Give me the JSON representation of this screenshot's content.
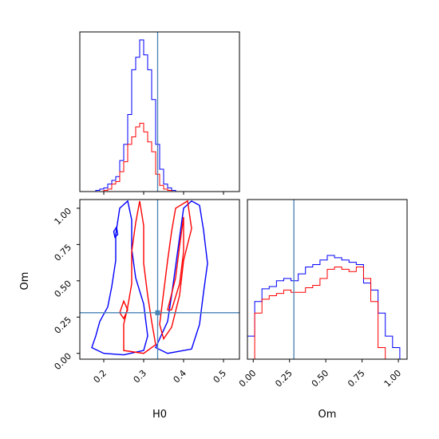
{
  "chart_data": {
    "type": "corner",
    "params": [
      "H0",
      "Om"
    ],
    "truth": {
      "H0": 0.335,
      "Om": 0.28
    },
    "truth_color": "#4682b4",
    "series_colors": {
      "a": "#0000ff",
      "b": "#ff0000"
    },
    "xlabel_h0": "H0",
    "xlabel_om": "Om",
    "ylabel_om": "Om",
    "h0_ticks": [
      "0.2",
      "0.3",
      "0.4",
      "0.5"
    ],
    "om_ticks": [
      "0.00",
      "0.25",
      "0.50",
      "0.75",
      "1.00"
    ],
    "h0_range": [
      0.14,
      0.54
    ],
    "om_range": [
      -0.04,
      1.06
    ],
    "hist_h0": {
      "bin_edges_start": 0.14,
      "bin_width": 0.01,
      "series": [
        {
          "color": "#0000ff",
          "counts": [
            0,
            0,
            0,
            0,
            1,
            2,
            3,
            6,
            9,
            12,
            25,
            38,
            62,
            98,
            108,
            122,
            110,
            98,
            74,
            38,
            18,
            6,
            3,
            1,
            0,
            0,
            0,
            0,
            0,
            0,
            0,
            0,
            0,
            0,
            0,
            0,
            0,
            0,
            0,
            0
          ]
        },
        {
          "color": "#ff0000",
          "counts": [
            0,
            0,
            0,
            0,
            0,
            0,
            1,
            2,
            6,
            8,
            16,
            24,
            38,
            44,
            52,
            55,
            48,
            40,
            32,
            14,
            5,
            2,
            1,
            0,
            0,
            0,
            0,
            0,
            0,
            0,
            0,
            0,
            0,
            0,
            0,
            0,
            0,
            0,
            0,
            0
          ]
        }
      ]
    },
    "hist_om": {
      "bin_edges_start": -0.04,
      "bin_width": 0.05,
      "series": [
        {
          "color": "#0000ff",
          "counts": [
            20,
            50,
            61,
            63,
            68,
            70,
            68,
            74,
            80,
            82,
            86,
            90,
            88,
            86,
            84,
            82,
            66,
            60,
            40,
            20,
            10,
            0
          ]
        },
        {
          "color": "#ff0000",
          "counts": [
            0,
            40,
            52,
            55,
            57,
            60,
            58,
            58,
            62,
            64,
            70,
            78,
            80,
            78,
            76,
            80,
            70,
            50,
            10,
            0,
            0,
            0
          ]
        }
      ]
    },
    "contours": {
      "blue": [
        [
          [
            0.17,
            0.04
          ],
          [
            0.18,
            0.12
          ],
          [
            0.19,
            0.22
          ],
          [
            0.21,
            0.32
          ],
          [
            0.22,
            0.46
          ],
          [
            0.23,
            0.64
          ],
          [
            0.23,
            0.82
          ],
          [
            0.24,
            1.0
          ],
          [
            0.26,
            1.05
          ],
          [
            0.27,
            0.92
          ],
          [
            0.27,
            0.72
          ],
          [
            0.28,
            0.52
          ],
          [
            0.3,
            0.34
          ],
          [
            0.31,
            0.12
          ],
          [
            0.3,
            0.02
          ],
          [
            0.25,
            -0.01
          ],
          [
            0.2,
            0.0
          ],
          [
            0.17,
            0.04
          ]
        ],
        [
          [
            0.33,
            0.04
          ],
          [
            0.36,
            0.22
          ],
          [
            0.37,
            0.4
          ],
          [
            0.38,
            0.6
          ],
          [
            0.39,
            0.8
          ],
          [
            0.4,
            1.0
          ],
          [
            0.42,
            1.05
          ],
          [
            0.44,
            1.02
          ],
          [
            0.45,
            0.85
          ],
          [
            0.46,
            0.62
          ],
          [
            0.45,
            0.42
          ],
          [
            0.44,
            0.2
          ],
          [
            0.42,
            0.03
          ],
          [
            0.36,
            0.0
          ],
          [
            0.33,
            0.04
          ]
        ],
        [
          [
            0.225,
            0.84
          ],
          [
            0.232,
            0.87
          ],
          [
            0.235,
            0.82
          ],
          [
            0.228,
            0.8
          ],
          [
            0.225,
            0.84
          ]
        ]
      ],
      "red": [
        [
          [
            0.25,
            0.02
          ],
          [
            0.25,
            0.2
          ],
          [
            0.26,
            0.32
          ],
          [
            0.27,
            0.48
          ],
          [
            0.27,
            0.7
          ],
          [
            0.28,
            0.9
          ],
          [
            0.29,
            1.05
          ],
          [
            0.3,
            0.88
          ],
          [
            0.3,
            0.62
          ],
          [
            0.31,
            0.4
          ],
          [
            0.32,
            0.22
          ],
          [
            0.33,
            0.06
          ],
          [
            0.3,
            0.0
          ],
          [
            0.25,
            0.02
          ]
        ],
        [
          [
            0.34,
            0.2
          ],
          [
            0.35,
            0.42
          ],
          [
            0.36,
            0.64
          ],
          [
            0.37,
            0.84
          ],
          [
            0.38,
            1.0
          ],
          [
            0.41,
            1.05
          ],
          [
            0.42,
            0.86
          ],
          [
            0.4,
            0.64
          ],
          [
            0.39,
            0.4
          ],
          [
            0.37,
            0.18
          ],
          [
            0.35,
            0.1
          ],
          [
            0.34,
            0.2
          ]
        ],
        [
          [
            0.24,
            0.28
          ],
          [
            0.25,
            0.36
          ],
          [
            0.26,
            0.3
          ],
          [
            0.25,
            0.24
          ],
          [
            0.24,
            0.28
          ]
        ],
        [
          [
            0.36,
            0.3
          ],
          [
            0.38,
            0.52
          ],
          [
            0.39,
            0.74
          ],
          [
            0.4,
            0.94
          ],
          [
            0.4,
            0.7
          ],
          [
            0.39,
            0.48
          ],
          [
            0.37,
            0.3
          ],
          [
            0.36,
            0.3
          ]
        ]
      ]
    }
  }
}
